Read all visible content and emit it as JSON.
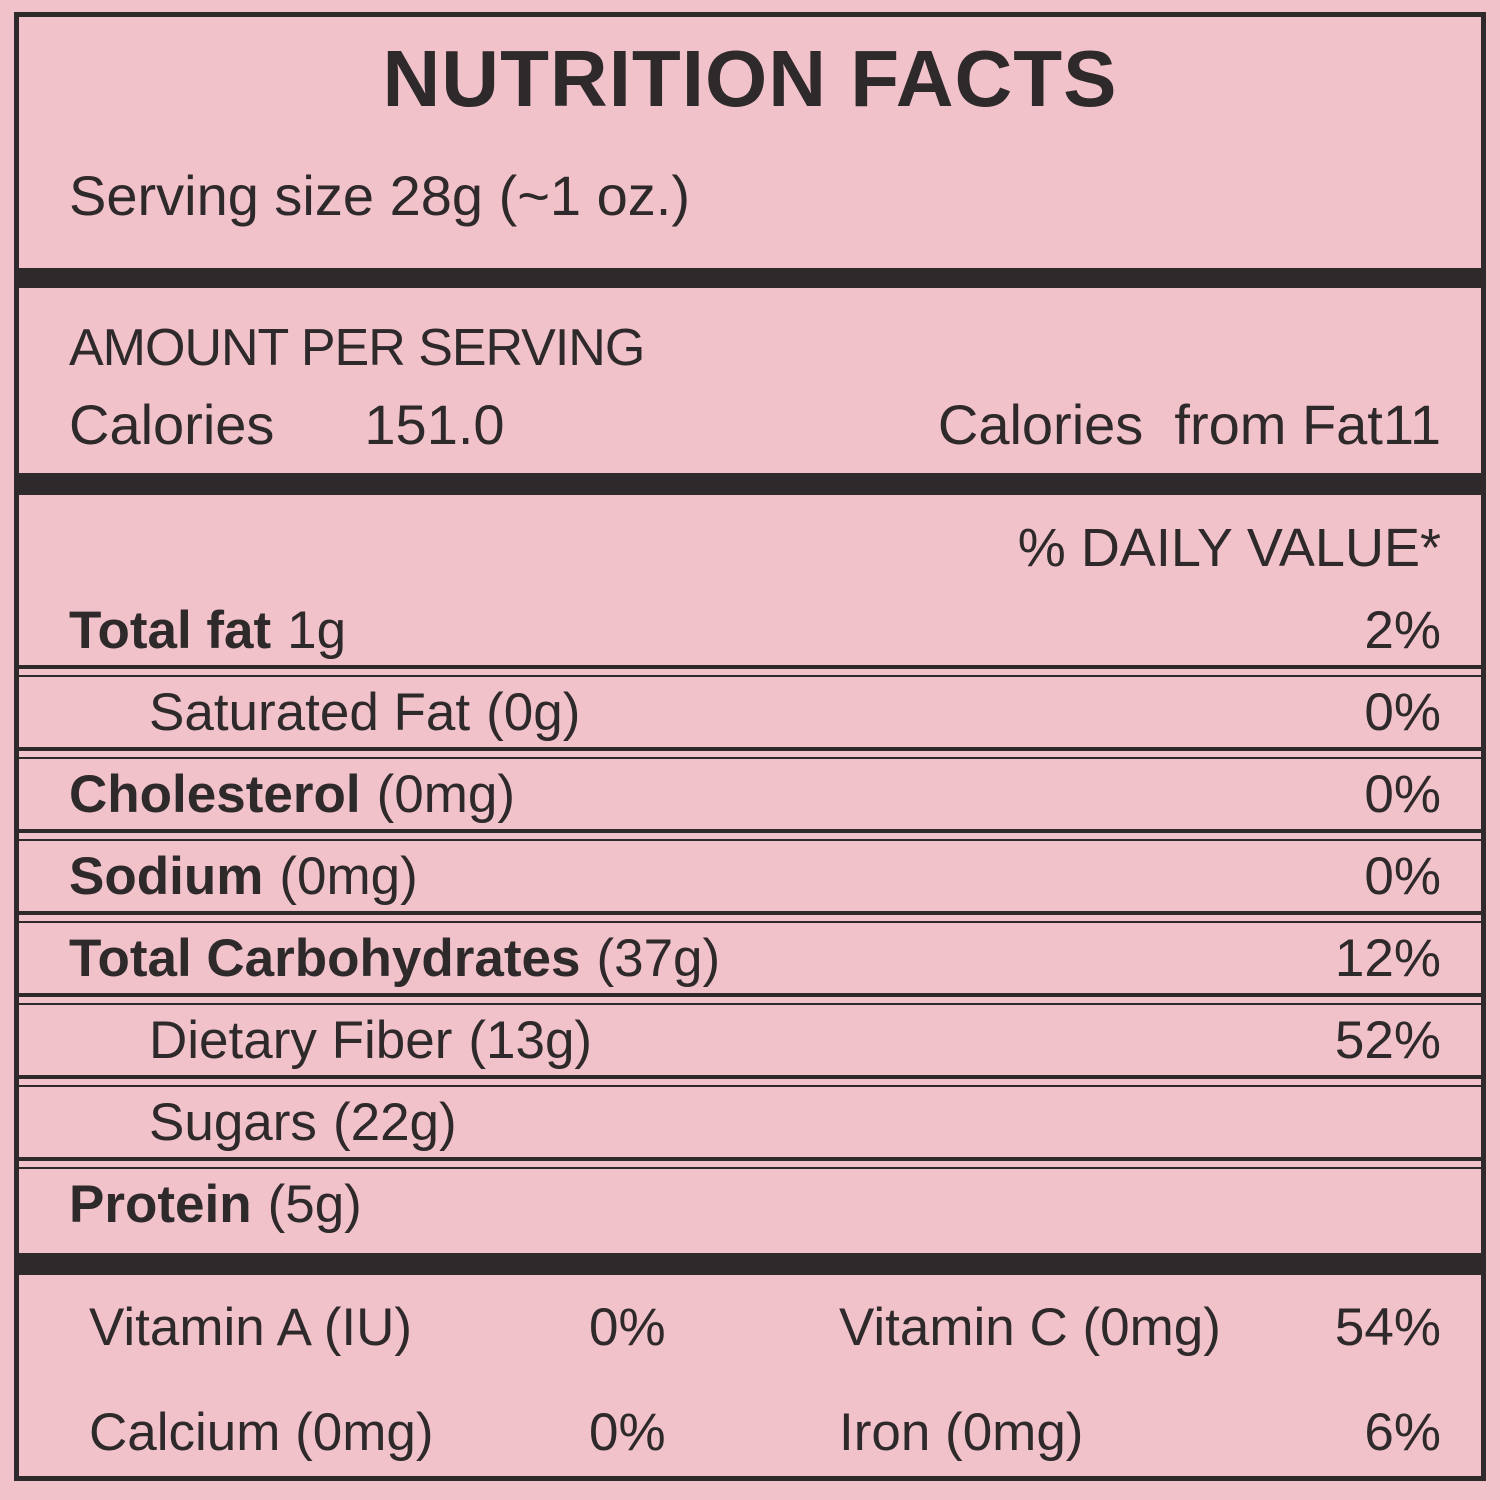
{
  "colors": {
    "background": "#f2c2cb",
    "ink": "#2e292a"
  },
  "header": {
    "title": "NUTRITION FACTS",
    "serving_size": "Serving size 28g (~1 oz.)"
  },
  "amount_section": {
    "heading": "AMOUNT PER SERVING",
    "calories_label": "Calories",
    "calories_value": "151.0",
    "calories_from_fat": "Calories  from Fat11"
  },
  "daily_value_header": "% DAILY VALUE*",
  "nutrients": [
    {
      "name": "Total fat",
      "amount": "1g",
      "pct": "2%"
    },
    {
      "name": "Saturated Fat",
      "amount": "(0g)",
      "pct": "0%"
    },
    {
      "name": "Cholesterol",
      "amount": "(0mg)",
      "pct": "0%"
    },
    {
      "name": "Sodium",
      "amount": "(0mg)",
      "pct": "0%"
    },
    {
      "name": "Total Carbohydrates",
      "amount": "(37g)",
      "pct": "12%"
    },
    {
      "name": "Dietary Fiber",
      "amount": "(13g)",
      "pct": "52%"
    },
    {
      "name": "Sugars",
      "amount": "(22g)",
      "pct": ""
    },
    {
      "name": "Protein",
      "amount": "(5g)",
      "pct": ""
    }
  ],
  "micronutrients": [
    {
      "name": "Vitamin A (IU)",
      "pct": "0%"
    },
    {
      "name": "Vitamin C (0mg)",
      "pct": "54%"
    },
    {
      "name": "Calcium (0mg)",
      "pct": "0%"
    },
    {
      "name": "Iron (0mg)",
      "pct": "6%"
    }
  ]
}
